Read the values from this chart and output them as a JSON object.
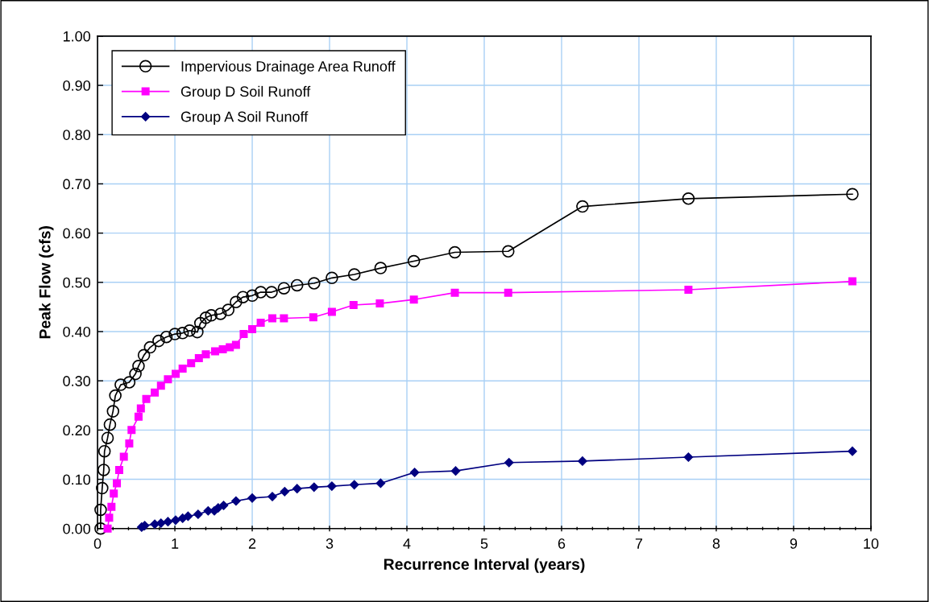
{
  "chart_data": {
    "type": "line",
    "xlabel": "Recurrence Interval (years)",
    "ylabel": "Peak Flow (cfs)",
    "xlim": [
      0,
      10
    ],
    "ylim": [
      0,
      1
    ],
    "xticks": [
      0,
      {
        "value": 0.2,
        "label": null
      },
      {
        "value": 0.4,
        "label": null
      },
      {
        "value": 0.6,
        "label": null
      },
      {
        "value": 0.8,
        "label": null
      },
      1,
      {
        "value": 1.2,
        "label": null
      },
      {
        "value": 1.4,
        "label": null
      },
      {
        "value": 1.6,
        "label": null
      },
      {
        "value": 1.8,
        "label": null
      },
      2,
      {
        "value": 2.2,
        "label": null
      },
      {
        "value": 2.4,
        "label": null
      },
      {
        "value": 2.6,
        "label": null
      },
      {
        "value": 2.8,
        "label": null
      },
      3,
      {
        "value": 3.2,
        "label": null
      },
      {
        "value": 3.4,
        "label": null
      },
      {
        "value": 3.6,
        "label": null
      },
      {
        "value": 3.8,
        "label": null
      },
      4,
      {
        "value": 4.2,
        "label": null
      },
      {
        "value": 4.4,
        "label": null
      },
      {
        "value": 4.6,
        "label": null
      },
      {
        "value": 4.8,
        "label": null
      },
      5,
      {
        "value": 5.2,
        "label": null
      },
      {
        "value": 5.4,
        "label": null
      },
      {
        "value": 5.6,
        "label": null
      },
      {
        "value": 5.8,
        "label": null
      },
      6,
      {
        "value": 6.2,
        "label": null
      },
      {
        "value": 6.4,
        "label": null
      },
      {
        "value": 6.6,
        "label": null
      },
      {
        "value": 6.8,
        "label": null
      },
      7,
      {
        "value": 7.2,
        "label": null
      },
      {
        "value": 7.4,
        "label": null
      },
      {
        "value": 7.6,
        "label": null
      },
      {
        "value": 7.8,
        "label": null
      },
      8,
      {
        "value": 8.2,
        "label": null
      },
      {
        "value": 8.4,
        "label": null
      },
      {
        "value": 8.6,
        "label": null
      },
      {
        "value": 8.8,
        "label": null
      },
      9,
      {
        "value": 9.2,
        "label": null
      },
      {
        "value": 9.4,
        "label": null
      },
      {
        "value": 9.6,
        "label": null
      },
      {
        "value": 9.8,
        "label": null
      },
      10
    ],
    "yticks": [
      {
        "value": 0,
        "label": "0.00"
      },
      {
        "value": 0.1,
        "label": "0.10"
      },
      {
        "value": 0.2,
        "label": "0.20"
      },
      {
        "value": 0.3,
        "label": "0.30"
      },
      {
        "value": 0.4,
        "label": "0.40"
      },
      {
        "value": 0.5,
        "label": "0.50"
      },
      {
        "value": 0.6,
        "label": "0.60"
      },
      {
        "value": 0.7,
        "label": "0.70"
      },
      {
        "value": 0.8,
        "label": "0.80"
      },
      {
        "value": 0.9,
        "label": "0.90"
      },
      {
        "value": 1,
        "label": "1.00"
      }
    ],
    "grid": true,
    "legend": "top left",
    "line_style": "solid",
    "series": [
      {
        "name": "Impervious Drainage Area Runoff",
        "color": "#000000",
        "marker": "circle",
        "x": [
          0.04,
          0.04,
          0.06,
          0.08,
          0.09,
          0.13,
          0.16,
          0.2,
          0.23,
          0.3,
          0.41,
          0.49,
          0.53,
          0.6,
          0.68,
          0.79,
          0.89,
          1.0,
          1.1,
          1.19,
          1.29,
          1.33,
          1.4,
          1.47,
          1.59,
          1.69,
          1.79,
          1.88,
          2.0,
          2.11,
          2.25,
          2.41,
          2.58,
          2.8,
          3.03,
          3.32,
          3.66,
          4.09,
          4.62,
          5.31,
          6.27,
          7.64,
          9.76
        ],
        "values": [
          0.0,
          0.038,
          0.082,
          0.119,
          0.157,
          0.184,
          0.211,
          0.238,
          0.27,
          0.292,
          0.297,
          0.314,
          0.33,
          0.352,
          0.368,
          0.381,
          0.389,
          0.395,
          0.397,
          0.402,
          0.399,
          0.417,
          0.428,
          0.433,
          0.436,
          0.444,
          0.46,
          0.47,
          0.473,
          0.48,
          0.48,
          0.488,
          0.494,
          0.498,
          0.509,
          0.516,
          0.529,
          0.543,
          0.561,
          0.563,
          0.654,
          0.67,
          0.679
        ]
      },
      {
        "name": "Group D Soil Runoff",
        "color": "#ff00ff",
        "marker": "square",
        "x": [
          0.13,
          0.15,
          0.18,
          0.21,
          0.25,
          0.28,
          0.34,
          0.41,
          0.44,
          0.53,
          0.56,
          0.63,
          0.74,
          0.82,
          0.91,
          1.01,
          1.1,
          1.21,
          1.31,
          1.4,
          1.52,
          1.62,
          1.71,
          1.79,
          1.89,
          2.0,
          2.11,
          2.26,
          2.41,
          2.79,
          3.03,
          3.31,
          3.65,
          4.09,
          4.62,
          5.31,
          7.64,
          9.76
        ],
        "values": [
          0.0,
          0.022,
          0.044,
          0.071,
          0.092,
          0.119,
          0.146,
          0.173,
          0.2,
          0.227,
          0.244,
          0.263,
          0.276,
          0.29,
          0.303,
          0.314,
          0.325,
          0.336,
          0.346,
          0.354,
          0.36,
          0.364,
          0.368,
          0.373,
          0.395,
          0.405,
          0.418,
          0.427,
          0.427,
          0.429,
          0.44,
          0.454,
          0.457,
          0.465,
          0.479,
          0.479,
          0.485,
          0.502
        ]
      },
      {
        "name": "Group A Soil Runoff",
        "color": "#000080",
        "marker": "diamond",
        "x": [
          0.57,
          0.61,
          0.74,
          0.82,
          0.91,
          1.01,
          1.1,
          1.17,
          1.3,
          1.43,
          1.51,
          1.56,
          1.63,
          1.79,
          2.0,
          2.26,
          2.42,
          2.58,
          2.8,
          3.03,
          3.32,
          3.66,
          4.1,
          4.63,
          5.32,
          6.27,
          7.64,
          9.76
        ],
        "values": [
          0.003,
          0.006,
          0.009,
          0.011,
          0.014,
          0.017,
          0.021,
          0.025,
          0.029,
          0.036,
          0.036,
          0.042,
          0.047,
          0.056,
          0.062,
          0.065,
          0.075,
          0.081,
          0.084,
          0.086,
          0.089,
          0.092,
          0.114,
          0.117,
          0.134,
          0.137,
          0.145,
          0.157
        ]
      }
    ]
  }
}
